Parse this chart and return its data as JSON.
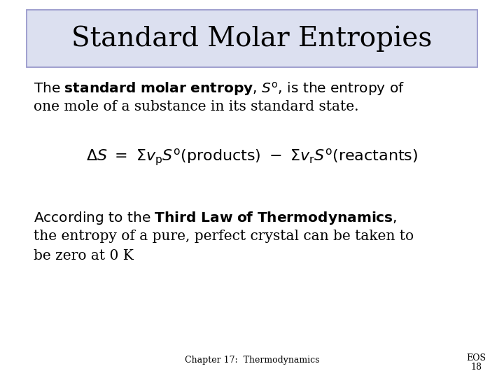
{
  "title": "Standard Molar Entropies",
  "title_fontsize": 28,
  "title_box_color": "#dce0f0",
  "title_box_edge": "#9999cc",
  "background_color": "#ffffff",
  "body_fontsize": 14.5,
  "equation_fontsize": 16,
  "footer_left": "Chapter 17:  Thermodynamics",
  "footer_right_line1": "EOS",
  "footer_right_line2": "18",
  "footer_fontsize": 9,
  "text_color": "#000000"
}
